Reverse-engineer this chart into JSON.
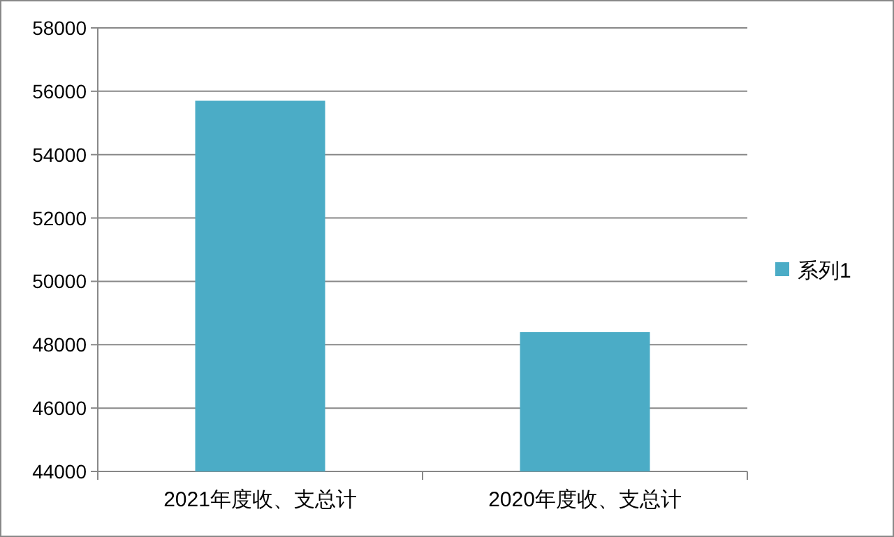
{
  "chart_data": {
    "type": "bar",
    "categories": [
      "2021年度收、支总计",
      "2020年度收、支总计"
    ],
    "series": [
      {
        "name": "系列1",
        "color": "#4bacc6",
        "values": [
          55700,
          48400
        ]
      }
    ],
    "ylim": [
      44000,
      58000
    ],
    "yticks": [
      44000,
      46000,
      48000,
      50000,
      52000,
      54000,
      56000,
      58000
    ],
    "grid": "y",
    "legend": "right"
  }
}
